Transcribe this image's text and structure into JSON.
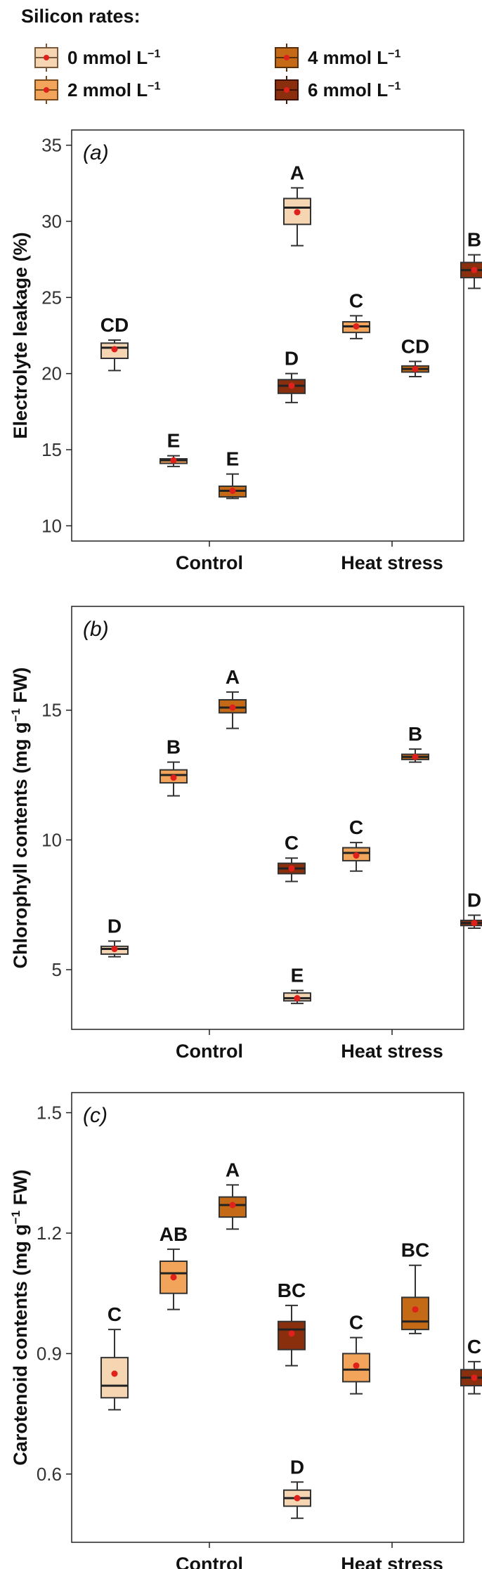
{
  "legend": {
    "title": "Silicon rates:",
    "items": [
      {
        "label": "0 mmol L",
        "exp": "−1",
        "color": "#f5d5b2",
        "dark": "#7a5a3a"
      },
      {
        "label": "2 mmol L",
        "exp": "−1",
        "color": "#f2a55a",
        "dark": "#7a4a1a"
      },
      {
        "label": "4 mmol L",
        "exp": "−1",
        "color": "#c46a16",
        "dark": "#5a2e08"
      },
      {
        "label": "6 mmol L",
        "exp": "−1",
        "color": "#8a2f0e",
        "dark": "#3e1206"
      }
    ]
  },
  "chart_data": [
    {
      "type": "box",
      "panel_label": "(a)",
      "ylabel": "Electrolyte leakage (%)",
      "ylabel_exp": "",
      "ylabel_tail": "",
      "ylim": [
        9,
        36
      ],
      "yticks": [
        "10",
        "15",
        "20",
        "25",
        "30",
        "35"
      ],
      "ytick_values": [
        10,
        15,
        20,
        25,
        30,
        35
      ],
      "categories": [
        "Control",
        "Heat stress"
      ],
      "series_names": [
        "0 mmol L−1",
        "2 mmol L−1",
        "4 mmol L−1",
        "6 mmol L−1"
      ],
      "boxes": [
        {
          "group": 0,
          "series": 0,
          "min": 20.2,
          "q1": 21.0,
          "median": 21.7,
          "q3": 22.0,
          "max": 22.2,
          "mean": 21.6,
          "letter": "CD"
        },
        {
          "group": 0,
          "series": 1,
          "min": 13.9,
          "q1": 14.1,
          "median": 14.3,
          "q3": 14.4,
          "max": 14.6,
          "mean": 14.3,
          "letter": "E"
        },
        {
          "group": 0,
          "series": 2,
          "min": 11.8,
          "q1": 11.9,
          "median": 12.3,
          "q3": 12.6,
          "max": 13.4,
          "mean": 12.3,
          "letter": "E"
        },
        {
          "group": 0,
          "series": 3,
          "min": 18.1,
          "q1": 18.7,
          "median": 19.2,
          "q3": 19.6,
          "max": 20.0,
          "mean": 19.2,
          "letter": "D"
        },
        {
          "group": 1,
          "series": 0,
          "min": 28.4,
          "q1": 29.8,
          "median": 30.9,
          "q3": 31.5,
          "max": 32.2,
          "mean": 30.6,
          "letter": "A"
        },
        {
          "group": 1,
          "series": 1,
          "min": 22.3,
          "q1": 22.7,
          "median": 23.1,
          "q3": 23.4,
          "max": 23.8,
          "mean": 23.1,
          "letter": "C"
        },
        {
          "group": 1,
          "series": 2,
          "min": 19.8,
          "q1": 20.1,
          "median": 20.3,
          "q3": 20.5,
          "max": 20.8,
          "mean": 20.3,
          "letter": "CD"
        },
        {
          "group": 1,
          "series": 3,
          "min": 25.6,
          "q1": 26.3,
          "median": 26.8,
          "q3": 27.3,
          "max": 27.8,
          "mean": 26.8,
          "letter": "B"
        }
      ]
    },
    {
      "type": "box",
      "panel_label": "(b)",
      "ylabel": "Chlorophyll contents (mg g",
      "ylabel_exp": "−1",
      "ylabel_tail": " FW)",
      "ylim": [
        2.7,
        19
      ],
      "yticks": [
        "5",
        "10",
        "15"
      ],
      "ytick_values": [
        5,
        10,
        15
      ],
      "categories": [
        "Control",
        "Heat stress"
      ],
      "series_names": [
        "0 mmol L−1",
        "2 mmol L−1",
        "4 mmol L−1",
        "6 mmol L−1"
      ],
      "boxes": [
        {
          "group": 0,
          "series": 0,
          "min": 5.5,
          "q1": 5.6,
          "median": 5.8,
          "q3": 5.9,
          "max": 6.1,
          "mean": 5.8,
          "letter": "D"
        },
        {
          "group": 0,
          "series": 1,
          "min": 11.7,
          "q1": 12.2,
          "median": 12.5,
          "q3": 12.7,
          "max": 13.0,
          "mean": 12.4,
          "letter": "B"
        },
        {
          "group": 0,
          "series": 2,
          "min": 14.3,
          "q1": 14.9,
          "median": 15.1,
          "q3": 15.4,
          "max": 15.7,
          "mean": 15.1,
          "letter": "A"
        },
        {
          "group": 0,
          "series": 3,
          "min": 8.4,
          "q1": 8.7,
          "median": 8.9,
          "q3": 9.1,
          "max": 9.3,
          "mean": 8.9,
          "letter": "C"
        },
        {
          "group": 1,
          "series": 0,
          "min": 3.7,
          "q1": 3.8,
          "median": 3.9,
          "q3": 4.1,
          "max": 4.2,
          "mean": 3.9,
          "letter": "E"
        },
        {
          "group": 1,
          "series": 1,
          "min": 8.8,
          "q1": 9.2,
          "median": 9.5,
          "q3": 9.7,
          "max": 9.9,
          "mean": 9.4,
          "letter": "C"
        },
        {
          "group": 1,
          "series": 2,
          "min": 13.0,
          "q1": 13.1,
          "median": 13.2,
          "q3": 13.3,
          "max": 13.5,
          "mean": 13.2,
          "letter": "B"
        },
        {
          "group": 1,
          "series": 3,
          "min": 6.6,
          "q1": 6.7,
          "median": 6.8,
          "q3": 6.9,
          "max": 7.1,
          "mean": 6.8,
          "letter": "D"
        }
      ]
    },
    {
      "type": "box",
      "panel_label": "(c)",
      "ylabel": "Carotenoid contents (mg g",
      "ylabel_exp": "−1",
      "ylabel_tail": " FW)",
      "ylim": [
        0.43,
        1.55
      ],
      "yticks": [
        "0.6",
        "0.9",
        "1.2",
        "1.5"
      ],
      "ytick_values": [
        0.6,
        0.9,
        1.2,
        1.5
      ],
      "categories": [
        "Control",
        "Heat stress"
      ],
      "series_names": [
        "0 mmol L−1",
        "2 mmol L−1",
        "4 mmol L−1",
        "6 mmol L−1"
      ],
      "boxes": [
        {
          "group": 0,
          "series": 0,
          "min": 0.76,
          "q1": 0.79,
          "median": 0.82,
          "q3": 0.89,
          "max": 0.96,
          "mean": 0.85,
          "letter": "C"
        },
        {
          "group": 0,
          "series": 1,
          "min": 1.01,
          "q1": 1.05,
          "median": 1.1,
          "q3": 1.13,
          "max": 1.16,
          "mean": 1.09,
          "letter": "AB"
        },
        {
          "group": 0,
          "series": 2,
          "min": 1.21,
          "q1": 1.24,
          "median": 1.27,
          "q3": 1.29,
          "max": 1.32,
          "mean": 1.27,
          "letter": "A"
        },
        {
          "group": 0,
          "series": 3,
          "min": 0.87,
          "q1": 0.91,
          "median": 0.96,
          "q3": 0.98,
          "max": 1.02,
          "mean": 0.95,
          "letter": "BC"
        },
        {
          "group": 1,
          "series": 0,
          "min": 0.49,
          "q1": 0.52,
          "median": 0.54,
          "q3": 0.56,
          "max": 0.58,
          "mean": 0.54,
          "letter": "D"
        },
        {
          "group": 1,
          "series": 1,
          "min": 0.8,
          "q1": 0.83,
          "median": 0.86,
          "q3": 0.9,
          "max": 0.94,
          "mean": 0.87,
          "letter": "C"
        },
        {
          "group": 1,
          "series": 2,
          "min": 0.95,
          "q1": 0.96,
          "median": 0.98,
          "q3": 1.04,
          "max": 1.12,
          "mean": 1.01,
          "letter": "BC"
        },
        {
          "group": 1,
          "series": 3,
          "min": 0.8,
          "q1": 0.82,
          "median": 0.84,
          "q3": 0.86,
          "max": 0.88,
          "mean": 0.84,
          "letter": "C"
        }
      ]
    }
  ]
}
